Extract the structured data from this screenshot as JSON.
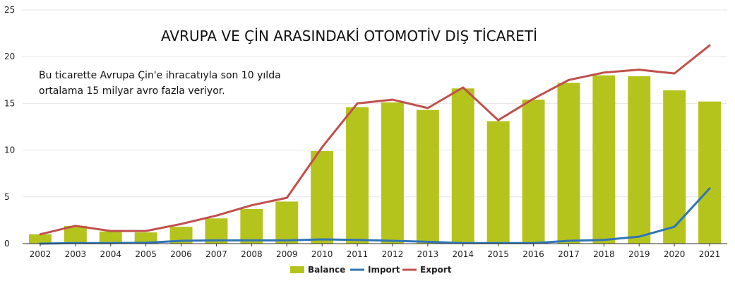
{
  "chart_data": {
    "type": "bar",
    "title": "AVRUPA VE ÇİN ARASINDAKİ OTOMOTİV DIŞ TİCARETİ",
    "annotation": [
      "Bu ticarette Avrupa Çin'e ihracatıyla son 10 yılda",
      "ortalama 15 milyar avro fazla veriyor."
    ],
    "xlabel": "",
    "ylabel": "",
    "ylim": [
      0,
      25
    ],
    "yticks": [
      0,
      5,
      10,
      15,
      20,
      25
    ],
    "grid": true,
    "legend_position": "bottom-center",
    "categories": [
      "2002",
      "2003",
      "2004",
      "2005",
      "2006",
      "2007",
      "2008",
      "2009",
      "2010",
      "2011",
      "2012",
      "2013",
      "2014",
      "2015",
      "2016",
      "2017",
      "2018",
      "2019",
      "2020",
      "2021"
    ],
    "series": [
      {
        "name": "Balance",
        "type": "bar",
        "color": "#b5c31d",
        "values": [
          1.0,
          1.9,
          1.3,
          1.2,
          1.8,
          2.7,
          3.7,
          4.5,
          9.9,
          14.6,
          15.1,
          14.3,
          16.6,
          13.1,
          15.4,
          17.2,
          18.0,
          17.9,
          16.4,
          15.2
        ]
      },
      {
        "name": "Import",
        "type": "line",
        "color": "#2e75b6",
        "values": [
          0.0,
          0.05,
          0.05,
          0.1,
          0.3,
          0.35,
          0.35,
          0.35,
          0.45,
          0.4,
          0.3,
          0.2,
          0.05,
          0.05,
          0.05,
          0.3,
          0.4,
          0.75,
          1.8,
          5.9
        ]
      },
      {
        "name": "Export",
        "type": "line",
        "color": "#c0504d",
        "values": [
          1.0,
          1.9,
          1.35,
          1.35,
          2.1,
          3.0,
          4.1,
          4.9,
          10.3,
          15.0,
          15.4,
          14.5,
          16.7,
          13.2,
          15.5,
          17.5,
          18.3,
          18.6,
          18.2,
          21.2
        ]
      }
    ]
  }
}
